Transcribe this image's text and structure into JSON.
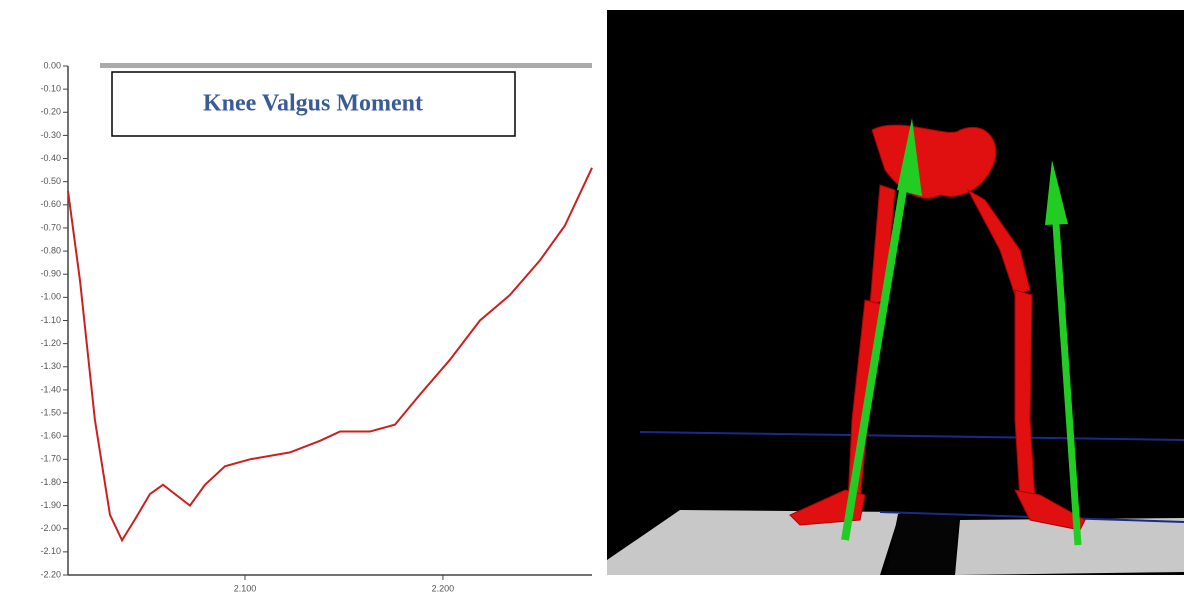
{
  "chart_data": {
    "type": "line",
    "title": "Knee Valgus Moment",
    "color": "#cc2020",
    "x": [
      2.0106,
      2.0167,
      2.0242,
      2.0318,
      2.0379,
      2.0444,
      2.052,
      2.0586,
      2.0646,
      2.0722,
      2.0798,
      2.0899,
      2.1025,
      2.1227,
      2.1379,
      2.148,
      2.1631,
      2.1758,
      2.1884,
      2.2035,
      2.2187,
      2.2338,
      2.249,
      2.2616,
      2.2753
    ],
    "values": [
      -0.54,
      -0.93,
      -1.53,
      -1.94,
      -2.05,
      -1.96,
      -1.85,
      -1.81,
      -1.85,
      -1.9,
      -1.81,
      -1.73,
      -1.7,
      -1.67,
      -1.62,
      -1.58,
      -1.58,
      -1.55,
      -1.42,
      -1.27,
      -1.1,
      -0.99,
      -0.84,
      -0.69,
      -0.44
    ],
    "xlim": [
      2.0106,
      2.2753
    ],
    "xticks": [
      {
        "value": 2.1,
        "label": "2.100"
      },
      {
        "value": 2.2,
        "label": "2.200"
      }
    ],
    "ylim": [
      -2.2,
      0
    ],
    "yticks": [
      {
        "value": 0,
        "label": "0.00"
      },
      {
        "value": -0.1,
        "label": "-0.10"
      },
      {
        "value": -0.2,
        "label": "-0.20"
      },
      {
        "value": -0.3,
        "label": "-0.30"
      },
      {
        "value": -0.4,
        "label": "-0.40"
      },
      {
        "value": -0.5,
        "label": "-0.50"
      },
      {
        "value": -0.6,
        "label": "-0.60"
      },
      {
        "value": -0.7,
        "label": "-0.70"
      },
      {
        "value": -0.8,
        "label": "-0.80"
      },
      {
        "value": -0.9,
        "label": "-0.90"
      },
      {
        "value": -1,
        "label": "-1.00"
      },
      {
        "value": -1.1,
        "label": "-1.10"
      },
      {
        "value": -1.2,
        "label": "-1.20"
      },
      {
        "value": -1.3,
        "label": "-1.30"
      },
      {
        "value": -1.4,
        "label": "-1.40"
      },
      {
        "value": -1.5,
        "label": "-1.50"
      },
      {
        "value": -1.6,
        "label": "-1.60"
      },
      {
        "value": -1.7,
        "label": "-1.70"
      },
      {
        "value": -1.8,
        "label": "-1.80"
      },
      {
        "value": -1.9,
        "label": "-1.90"
      },
      {
        "value": -2,
        "label": "-2.00"
      },
      {
        "value": -2.1,
        "label": "-2.10"
      },
      {
        "value": -2.2,
        "label": "-2.20"
      }
    ]
  }
}
